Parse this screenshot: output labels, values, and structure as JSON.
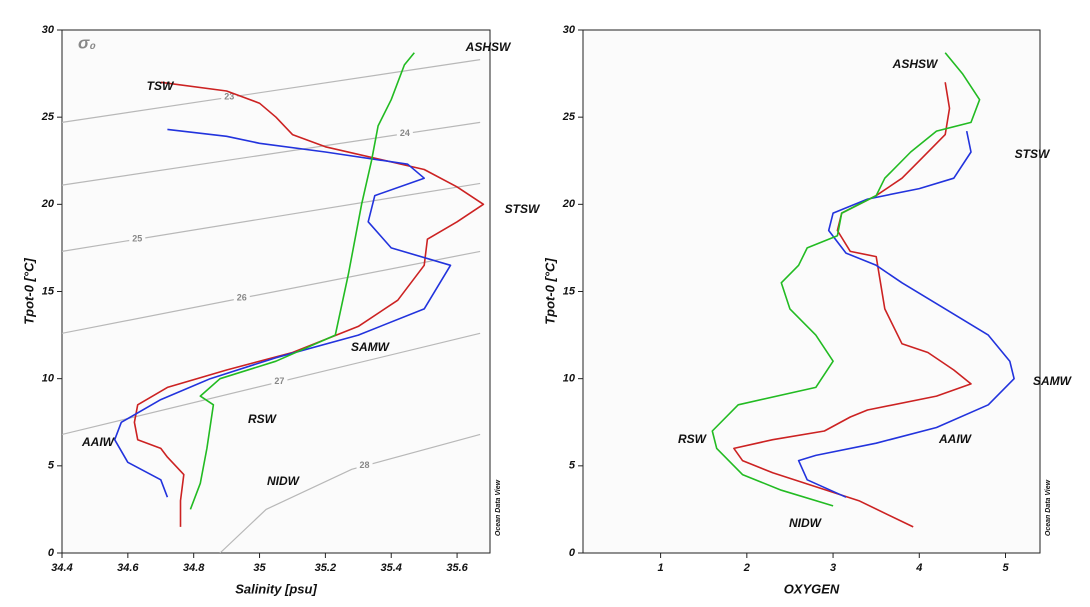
{
  "chart_data": [
    {
      "type": "line",
      "xlabel": "Salinity [psu]",
      "ylabel": "Tpot-0 [°C]",
      "annotation": "σ₀",
      "watermark": "Ocean Data View",
      "xlim": [
        34.4,
        35.7
      ],
      "ylim": [
        0,
        30
      ],
      "xticks": [
        34.4,
        34.6,
        34.8,
        35,
        35.2,
        35.4,
        35.6
      ],
      "yticks": [
        0,
        5,
        10,
        15,
        20,
        25,
        30
      ],
      "labels": [
        "TSW",
        "ASHSW",
        "STSW",
        "SAMW",
        "RSW",
        "AAIW",
        "NIDW"
      ],
      "contours": [
        {
          "level": 23,
          "x": [
            34.4,
            35.67
          ],
          "y": [
            24.7,
            28.3
          ]
        },
        {
          "level": 24,
          "x": [
            34.4,
            35.67
          ],
          "y": [
            21.1,
            24.7
          ]
        },
        {
          "level": 25,
          "x": [
            34.4,
            35.67
          ],
          "y": [
            17.3,
            21.2
          ]
        },
        {
          "level": 26,
          "x": [
            34.4,
            35.67
          ],
          "y": [
            12.6,
            17.3
          ]
        },
        {
          "level": 27,
          "x": [
            34.4,
            35.67
          ],
          "y": [
            6.8,
            12.6
          ]
        },
        {
          "level": 28,
          "x": [
            34.88,
            35.02,
            35.28,
            35.67
          ],
          "y": [
            0,
            2.5,
            4.8,
            6.8
          ]
        }
      ],
      "series": [
        {
          "color": "#cc2222",
          "x": [
            34.76,
            34.76,
            34.77,
            34.72,
            34.7,
            34.63,
            34.62,
            34.63,
            34.72,
            34.9,
            35.1,
            35.3,
            35.42,
            35.5,
            35.51,
            35.6,
            35.68,
            35.6,
            35.5,
            35.2,
            35.1,
            35.05,
            35.0,
            34.9,
            34.7
          ],
          "values": [
            1.5,
            3,
            4.5,
            5.5,
            6,
            6.5,
            7.5,
            8.5,
            9.5,
            10.5,
            11.5,
            13,
            14.5,
            16.5,
            18,
            19,
            20,
            21,
            22,
            23.3,
            24,
            25,
            25.8,
            26.5,
            27
          ]
        },
        {
          "color": "#2233dd",
          "x": [
            34.72,
            34.7,
            34.6,
            34.56,
            34.58,
            34.7,
            34.85,
            35.05,
            35.3,
            35.5,
            35.58,
            35.4,
            35.33,
            35.35,
            35.5,
            35.45,
            35.2,
            35.0,
            34.9,
            34.72
          ],
          "values": [
            3.2,
            4.2,
            5.2,
            6.5,
            7.5,
            8.8,
            10,
            11.2,
            12.5,
            14,
            16.5,
            17.5,
            19,
            20.5,
            21.5,
            22.3,
            23,
            23.5,
            23.9,
            24.3
          ]
        },
        {
          "color": "#22bb22",
          "x": [
            34.79,
            34.82,
            34.84,
            34.86,
            34.82,
            34.88,
            35.05,
            35.23,
            35.27,
            35.31,
            35.34,
            35.36,
            35.4,
            35.44,
            35.47
          ],
          "values": [
            2.5,
            4,
            6,
            8.5,
            9,
            10,
            11,
            12.5,
            16,
            20,
            22.5,
            24.5,
            26,
            28,
            28.7
          ]
        }
      ]
    },
    {
      "type": "line",
      "xlabel": "OXYGEN",
      "ylabel": "Tpot-0 [°C]",
      "watermark": "Ocean Data View",
      "xlim": [
        0.1,
        5.4
      ],
      "ylim": [
        0,
        30
      ],
      "xticks": [
        1,
        2,
        3,
        4,
        5
      ],
      "yticks": [
        0,
        5,
        10,
        15,
        20,
        25,
        30
      ],
      "labels": [
        "ASHSW",
        "STSW",
        "SAMW",
        "AAIW",
        "RSW",
        "NIDW"
      ],
      "series": [
        {
          "color": "#cc2222",
          "x": [
            3.93,
            3.3,
            2.8,
            2.3,
            1.95,
            1.85,
            2.3,
            2.9,
            3.2,
            3.4,
            4.2,
            4.6,
            4.4,
            4.1,
            3.8,
            3.6,
            3.5,
            3.2,
            3.05,
            3.1,
            3.5,
            3.8,
            4.0,
            4.3,
            4.35,
            4.3
          ],
          "values": [
            1.5,
            3,
            3.8,
            4.6,
            5.3,
            6,
            6.5,
            7,
            7.8,
            8.2,
            9,
            9.7,
            10.5,
            11.5,
            12,
            14,
            17,
            17.3,
            18.5,
            19.5,
            20.5,
            21.5,
            22.5,
            24,
            25.5,
            27
          ]
        },
        {
          "color": "#2233dd",
          "x": [
            3.15,
            2.7,
            2.6,
            2.8,
            3.5,
            4.2,
            4.8,
            5.1,
            5.05,
            4.8,
            4.3,
            3.8,
            3.5,
            3.15,
            2.95,
            3.0,
            3.4,
            4.0,
            4.4,
            4.6,
            4.55
          ],
          "values": [
            3.2,
            4.2,
            5.3,
            5.6,
            6.3,
            7.2,
            8.5,
            10,
            11,
            12.5,
            14,
            15.5,
            16.5,
            17.2,
            18.5,
            19.5,
            20.3,
            20.9,
            21.5,
            23,
            24.2
          ]
        },
        {
          "color": "#22bb22",
          "x": [
            3.0,
            2.4,
            1.95,
            1.65,
            1.6,
            1.9,
            2.8,
            3.0,
            2.8,
            2.5,
            2.4,
            2.6,
            2.7,
            3.05,
            3.1,
            3.5,
            3.6,
            3.9,
            4.2,
            4.6,
            4.7,
            4.5,
            4.3
          ],
          "values": [
            2.7,
            3.6,
            4.5,
            6,
            7,
            8.5,
            9.5,
            11,
            12.5,
            14,
            15.5,
            16.5,
            17.5,
            18.2,
            19.5,
            20.5,
            21.5,
            23,
            24.2,
            24.7,
            26,
            27.5,
            28.7
          ]
        }
      ]
    }
  ]
}
